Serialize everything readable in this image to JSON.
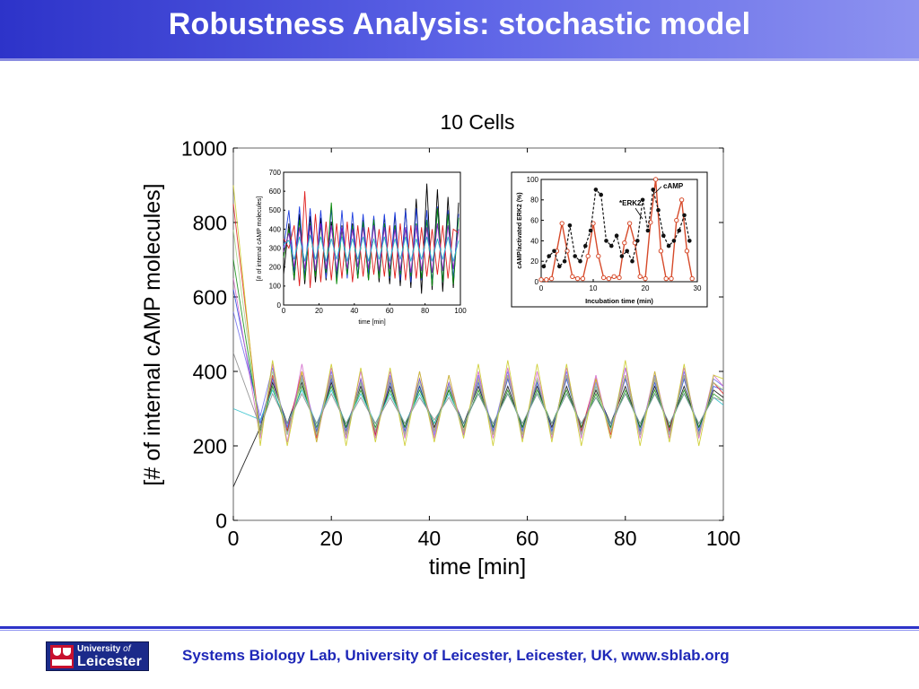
{
  "slide": {
    "title": "Robustness Analysis: stochastic model",
    "footer_text": "Systems Biology Lab, University of Leicester, Leicester, UK, www.sblab.org",
    "logo": {
      "line1": "University",
      "line1_italic": "of",
      "line2": "Leicester"
    },
    "colors": {
      "title_bar": "#3a40d6",
      "footer_text": "#1f28b8",
      "footer_rule": "#2d33c9"
    }
  },
  "chart_data": [
    {
      "type": "line",
      "title": "10 Cells",
      "xlabel": "time [min]",
      "ylabel": "[# of internal cAMP molecules]",
      "xlim": [
        0,
        100
      ],
      "ylim": [
        0,
        1000
      ],
      "x_ticks": [
        0,
        20,
        40,
        60,
        80,
        100
      ],
      "y_ticks": [
        0,
        200,
        400,
        600,
        800,
        1000
      ],
      "grid": false,
      "series_count": 10,
      "series_colors": [
        "#000000",
        "#1f3fe0",
        "#0a8a0a",
        "#e01e1e",
        "#6a6af0",
        "#22bcc9",
        "#d060c8",
        "#c8c81a",
        "#888888",
        "#a0d080"
      ],
      "x": [
        0,
        5.5,
        8,
        11,
        14,
        17,
        20,
        23,
        26,
        29,
        32,
        35,
        38,
        41,
        44,
        47,
        50,
        53,
        56,
        59,
        62,
        65,
        68,
        71,
        74,
        77,
        80,
        83,
        86,
        89,
        92,
        95,
        98,
        100
      ],
      "series": [
        {
          "values": [
            90,
            250,
            370,
            260,
            370,
            240,
            370,
            250,
            360,
            240,
            360,
            250,
            360,
            250,
            350,
            260,
            360,
            250,
            360,
            250,
            360,
            250,
            360,
            250,
            350,
            260,
            360,
            250,
            360,
            250,
            360,
            250,
            350,
            330
          ]
        },
        {
          "values": [
            620,
            260,
            380,
            250,
            380,
            230,
            380,
            240,
            370,
            230,
            370,
            240,
            360,
            240,
            360,
            250,
            370,
            240,
            380,
            240,
            370,
            240,
            380,
            240,
            360,
            250,
            380,
            240,
            370,
            240,
            380,
            240,
            360,
            350
          ]
        },
        {
          "values": [
            700,
            240,
            360,
            240,
            360,
            250,
            360,
            250,
            350,
            250,
            350,
            250,
            350,
            260,
            350,
            250,
            350,
            250,
            350,
            250,
            350,
            260,
            350,
            250,
            340,
            250,
            350,
            250,
            350,
            250,
            350,
            250,
            340,
            320
          ]
        },
        {
          "values": [
            850,
            230,
            390,
            240,
            400,
            220,
            390,
            230,
            380,
            230,
            380,
            230,
            380,
            240,
            370,
            240,
            380,
            230,
            390,
            230,
            380,
            230,
            390,
            240,
            380,
            230,
            390,
            230,
            380,
            240,
            390,
            230,
            370,
            340
          ]
        },
        {
          "values": [
            560,
            280,
            410,
            230,
            390,
            240,
            400,
            220,
            380,
            240,
            390,
            230,
            380,
            230,
            370,
            230,
            390,
            240,
            400,
            220,
            380,
            230,
            400,
            230,
            370,
            240,
            410,
            230,
            390,
            230,
            400,
            230,
            380,
            360
          ]
        },
        {
          "values": [
            300,
            270,
            350,
            260,
            350,
            260,
            350,
            260,
            340,
            260,
            340,
            260,
            340,
            260,
            340,
            260,
            340,
            260,
            340,
            260,
            340,
            260,
            340,
            260,
            330,
            260,
            340,
            260,
            340,
            260,
            340,
            260,
            330,
            310
          ]
        },
        {
          "values": [
            650,
            220,
            420,
            210,
            420,
            210,
            410,
            220,
            400,
            220,
            400,
            220,
            400,
            220,
            390,
            230,
            400,
            220,
            410,
            220,
            400,
            220,
            410,
            220,
            390,
            220,
            410,
            220,
            400,
            220,
            410,
            220,
            390,
            360
          ]
        },
        {
          "values": [
            900,
            200,
            430,
            200,
            400,
            210,
            420,
            200,
            410,
            210,
            410,
            200,
            400,
            210,
            390,
            220,
            420,
            200,
            430,
            210,
            420,
            210,
            420,
            200,
            380,
            220,
            430,
            200,
            400,
            210,
            420,
            200,
            390,
            380
          ]
        },
        {
          "values": [
            450,
            250,
            340,
            260,
            340,
            260,
            340,
            260,
            330,
            260,
            330,
            260,
            330,
            270,
            330,
            260,
            340,
            260,
            340,
            260,
            340,
            260,
            340,
            260,
            330,
            260,
            340,
            260,
            340,
            260,
            340,
            260,
            330,
            320
          ]
        },
        {
          "values": [
            780,
            230,
            400,
            230,
            380,
            230,
            390,
            230,
            370,
            240,
            380,
            230,
            370,
            240,
            360,
            240,
            380,
            230,
            390,
            230,
            380,
            230,
            390,
            230,
            360,
            240,
            390,
            230,
            380,
            230,
            390,
            230,
            370,
            350
          ]
        }
      ]
    },
    {
      "type": "line",
      "title": "",
      "xlabel": "time [min]",
      "ylabel": "[# of internal cAMP molecules]",
      "xlim": [
        0,
        100
      ],
      "ylim": [
        0,
        700
      ],
      "x_ticks": [
        0,
        20,
        40,
        60,
        80,
        100
      ],
      "y_ticks": [
        0,
        100,
        200,
        300,
        400,
        500,
        600,
        700
      ],
      "grid": false,
      "series_colors": [
        "#000000",
        "#1f3fe0",
        "#0a8a0a",
        "#e01e1e",
        "#8a1ec8",
        "#22bcc9"
      ],
      "x": [
        0,
        3,
        6,
        9,
        12,
        15,
        18,
        21,
        24,
        27,
        30,
        33,
        36,
        39,
        42,
        45,
        48,
        51,
        54,
        57,
        60,
        63,
        66,
        69,
        72,
        75,
        78,
        81,
        84,
        87,
        90,
        93,
        96,
        99
      ],
      "series": [
        {
          "values": [
            160,
            430,
            130,
            480,
            110,
            470,
            120,
            460,
            130,
            440,
            150,
            420,
            160,
            430,
            140,
            450,
            130,
            460,
            120,
            470,
            110,
            480,
            100,
            510,
            90,
            560,
            60,
            640,
            80,
            610,
            70,
            570,
            90,
            540
          ]
        },
        {
          "values": [
            300,
            500,
            170,
            520,
            150,
            510,
            160,
            500,
            140,
            510,
            130,
            500,
            140,
            490,
            150,
            480,
            160,
            470,
            150,
            480,
            140,
            490,
            130,
            500,
            120,
            510,
            130,
            500,
            110,
            520,
            120,
            500,
            140,
            480
          ]
        },
        {
          "values": [
            250,
            400,
            140,
            450,
            130,
            430,
            150,
            420,
            170,
            540,
            110,
            400,
            160,
            420,
            140,
            440,
            130,
            450,
            140,
            430,
            150,
            420,
            160,
            410,
            150,
            430,
            140,
            450,
            100,
            510,
            120,
            480,
            110,
            460
          ]
        },
        {
          "values": [
            350,
            300,
            420,
            100,
            600,
            90,
            480,
            120,
            440,
            130,
            430,
            140,
            440,
            120,
            420,
            150,
            410,
            160,
            400,
            150,
            420,
            140,
            430,
            130,
            420,
            140,
            410,
            150,
            400,
            160,
            420,
            140,
            400,
            380
          ]
        },
        {
          "values": [
            280,
            380,
            200,
            410,
            190,
            420,
            180,
            430,
            190,
            420,
            180,
            410,
            190,
            400,
            200,
            410,
            190,
            420,
            180,
            410,
            190,
            400,
            180,
            410,
            170,
            420,
            180,
            410,
            170,
            430,
            180,
            420,
            190,
            400
          ]
        },
        {
          "values": [
            320,
            340,
            240,
            360,
            230,
            370,
            240,
            360,
            230,
            350,
            240,
            360,
            230,
            350,
            240,
            360,
            230,
            350,
            240,
            360,
            230,
            350,
            240,
            360,
            230,
            350,
            240,
            360,
            230,
            350,
            240,
            360,
            230,
            340
          ]
        }
      ]
    },
    {
      "type": "line",
      "title": "",
      "xlabel": "Incubation time (min)",
      "ylabel": "cAMP/activated ERK2 (%)",
      "xlim": [
        0,
        30
      ],
      "ylim": [
        0,
        100
      ],
      "x_ticks": [
        0,
        10,
        20,
        30
      ],
      "y_ticks": [
        0,
        20,
        40,
        60,
        80,
        100
      ],
      "grid": false,
      "annotations": [
        "cAMP",
        "*ERK2"
      ],
      "series": [
        {
          "name": "cAMP",
          "color": "#d64a2a",
          "x": [
            0,
            1,
            2,
            3,
            4,
            5,
            6,
            7,
            8,
            9,
            10,
            11,
            12,
            13,
            14,
            15,
            16,
            17,
            18,
            19,
            20,
            21,
            22,
            23,
            24,
            25,
            26,
            27,
            28,
            29
          ],
          "values": [
            2,
            2,
            3,
            30,
            57,
            30,
            5,
            3,
            3,
            25,
            57,
            25,
            4,
            3,
            5,
            4,
            38,
            57,
            38,
            5,
            3,
            58,
            100,
            30,
            3,
            3,
            60,
            80,
            30,
            3
          ]
        },
        {
          "name": "*ERK2",
          "color": "#111111",
          "x": [
            0.5,
            1.5,
            2.5,
            3.5,
            4.5,
            5.5,
            6.5,
            7.5,
            8.5,
            9.5,
            10.5,
            11.5,
            12.5,
            13.5,
            14.5,
            15.5,
            16.5,
            17.5,
            18.5,
            19.5,
            20.5,
            21.5,
            22.5,
            23.5,
            24.5,
            25.5,
            26.5,
            27.5,
            28.5
          ],
          "values": [
            15,
            25,
            30,
            15,
            20,
            55,
            25,
            20,
            35,
            50,
            90,
            85,
            40,
            35,
            45,
            25,
            30,
            20,
            40,
            80,
            50,
            90,
            70,
            45,
            35,
            40,
            50,
            65,
            40
          ]
        }
      ]
    }
  ]
}
